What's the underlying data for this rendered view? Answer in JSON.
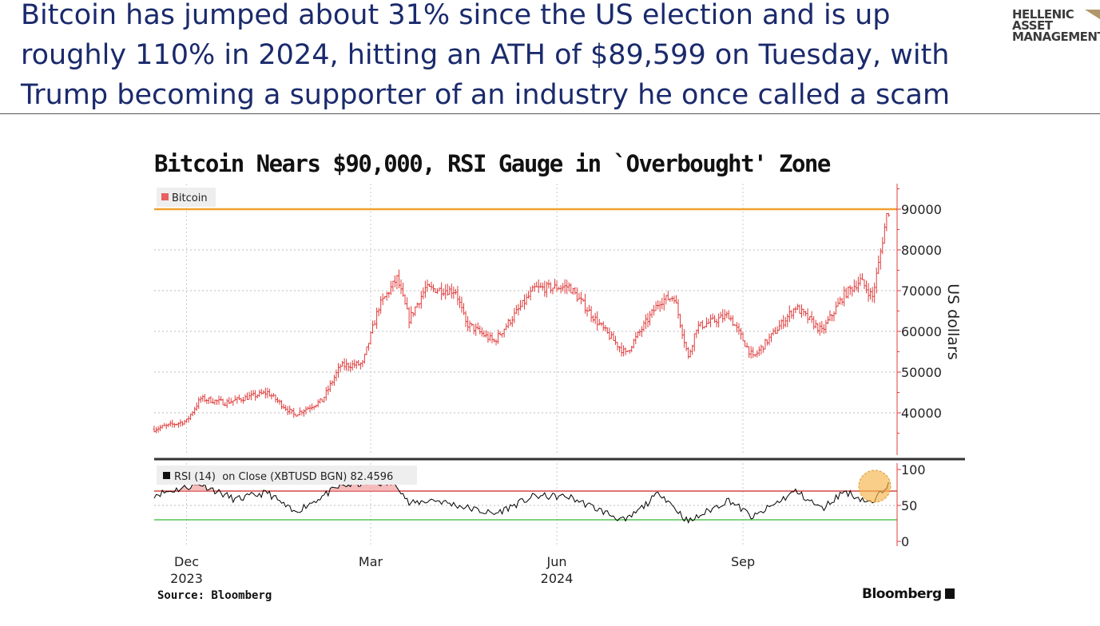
{
  "headline": "Bitcoin has jumped about 31% since the US election and is up roughly 110% in 2024, hitting an ATH of $89,599 on Tuesday, with Trump becoming a supporter of an industry he once called a scam",
  "logo": {
    "line1": "HELLENIC",
    "line2": "ASSET",
    "line3": "MANAGEMENT"
  },
  "colors": {
    "headline": "#1a2a6c",
    "price_bars": "#e03c3c",
    "ath_line": "#f0a030",
    "rsi_line": "#000000",
    "overbought": "#cc2222",
    "oversold": "#33bb33",
    "highlight": "#f5b34a"
  },
  "chart_data": [
    {
      "type": "ohlc",
      "title": "Bitcoin Nears $90,000, RSI Gauge in `Overbought' Zone",
      "legend": "Bitcoin",
      "ylabel": "US dollars",
      "ylim": [
        30000,
        97000
      ],
      "yticks": [
        40000,
        50000,
        60000,
        70000,
        80000,
        90000
      ],
      "ytick_labels": [
        "40000",
        "50000",
        "60000",
        "70000",
        "80000",
        "90000"
      ],
      "reference_line": 90000,
      "x_range": [
        "2023-11-15",
        "2024-11-15"
      ],
      "close_keypoints": [
        {
          "date": "2023-11-15",
          "value": 36000
        },
        {
          "date": "2023-12-01",
          "value": 38000
        },
        {
          "date": "2023-12-08",
          "value": 43500
        },
        {
          "date": "2023-12-20",
          "value": 42500
        },
        {
          "date": "2024-01-10",
          "value": 45000
        },
        {
          "date": "2024-01-23",
          "value": 39500
        },
        {
          "date": "2024-02-06",
          "value": 43000
        },
        {
          "date": "2024-02-15",
          "value": 51500
        },
        {
          "date": "2024-02-26",
          "value": 52000
        },
        {
          "date": "2024-03-05",
          "value": 66000
        },
        {
          "date": "2024-03-14",
          "value": 73000
        },
        {
          "date": "2024-03-20",
          "value": 63000
        },
        {
          "date": "2024-03-28",
          "value": 70500
        },
        {
          "date": "2024-04-12",
          "value": 70000
        },
        {
          "date": "2024-04-17",
          "value": 62000
        },
        {
          "date": "2024-05-01",
          "value": 57500
        },
        {
          "date": "2024-05-21",
          "value": 70500
        },
        {
          "date": "2024-06-07",
          "value": 71000
        },
        {
          "date": "2024-06-24",
          "value": 60500
        },
        {
          "date": "2024-07-05",
          "value": 54500
        },
        {
          "date": "2024-07-22",
          "value": 67500
        },
        {
          "date": "2024-07-29",
          "value": 68500
        },
        {
          "date": "2024-08-05",
          "value": 53500
        },
        {
          "date": "2024-08-09",
          "value": 61000
        },
        {
          "date": "2024-08-25",
          "value": 64000
        },
        {
          "date": "2024-09-06",
          "value": 53500
        },
        {
          "date": "2024-09-27",
          "value": 66000
        },
        {
          "date": "2024-10-10",
          "value": 60000
        },
        {
          "date": "2024-10-21",
          "value": 69000
        },
        {
          "date": "2024-10-29",
          "value": 72500
        },
        {
          "date": "2024-11-04",
          "value": 68500
        },
        {
          "date": "2024-11-07",
          "value": 76500
        },
        {
          "date": "2024-11-11",
          "value": 88500
        },
        {
          "date": "2024-11-12",
          "value": 89599
        }
      ]
    },
    {
      "type": "line",
      "legend": "RSI (14)  on Close (XBTUSD BGN) 82.4596",
      "ylim": [
        0,
        100
      ],
      "yticks": [
        0,
        50,
        100
      ],
      "ytick_labels": [
        "0",
        "50",
        "100"
      ],
      "overbought": 70,
      "oversold": 30,
      "last_value": 82.4596,
      "rsi_keypoints": [
        {
          "date": "2023-11-15",
          "value": 65
        },
        {
          "date": "2023-12-08",
          "value": 80
        },
        {
          "date": "2023-12-25",
          "value": 58
        },
        {
          "date": "2024-01-10",
          "value": 68
        },
        {
          "date": "2024-01-23",
          "value": 40
        },
        {
          "date": "2024-02-15",
          "value": 77
        },
        {
          "date": "2024-03-01",
          "value": 82
        },
        {
          "date": "2024-03-14",
          "value": 80
        },
        {
          "date": "2024-03-20",
          "value": 52
        },
        {
          "date": "2024-04-01",
          "value": 58
        },
        {
          "date": "2024-05-01",
          "value": 38
        },
        {
          "date": "2024-05-21",
          "value": 63
        },
        {
          "date": "2024-06-07",
          "value": 62
        },
        {
          "date": "2024-07-05",
          "value": 28
        },
        {
          "date": "2024-07-22",
          "value": 68
        },
        {
          "date": "2024-08-05",
          "value": 27
        },
        {
          "date": "2024-08-25",
          "value": 58
        },
        {
          "date": "2024-09-06",
          "value": 33
        },
        {
          "date": "2024-09-27",
          "value": 70
        },
        {
          "date": "2024-10-10",
          "value": 45
        },
        {
          "date": "2024-10-21",
          "value": 70
        },
        {
          "date": "2024-11-04",
          "value": 52
        },
        {
          "date": "2024-11-12",
          "value": 82.4596
        }
      ]
    }
  ],
  "x_axis": {
    "ticks": [
      {
        "date": "2023-12-01",
        "label": "Dec",
        "year": "2023"
      },
      {
        "date": "2024-03-01",
        "label": "Mar",
        "year": ""
      },
      {
        "date": "2024-06-01",
        "label": "Jun",
        "year": "2024"
      },
      {
        "date": "2024-09-01",
        "label": "Sep",
        "year": ""
      }
    ]
  },
  "source": "Source: Bloomberg",
  "brand": "Bloomberg"
}
